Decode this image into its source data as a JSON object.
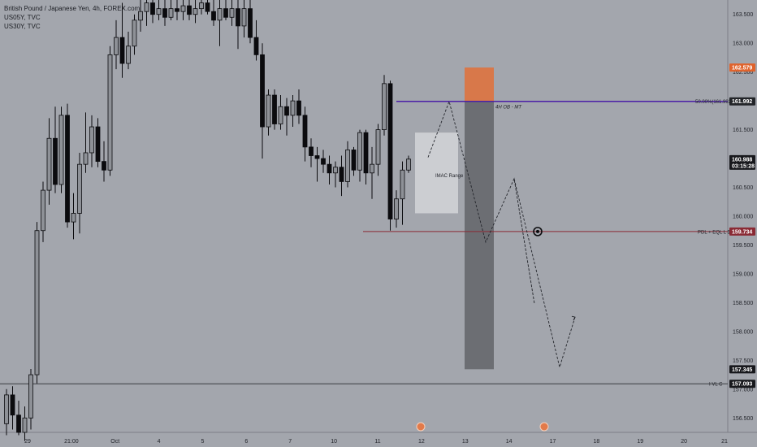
{
  "legend": {
    "symbol_line": "British Pound / Japanese Yen, 4h, FOREX.com",
    "overlay_1": "US05Y, TVC",
    "overlay_2": "US30Y, TVC"
  },
  "colors": {
    "background": "#a3a6ad",
    "bull_candle": "#8e9197",
    "bear_candle": "#0b0b0e",
    "supply_zone": "#d8784a",
    "trade_bar": "#6c6e73",
    "imac_box": "#cfd0d4",
    "fib_line": "#4b1fa6",
    "pdl_line": "#8a2a34",
    "price_tag_orange": "#e0632c",
    "price_tag_purple": "#222428",
    "price_tag_red": "#8a2a34",
    "price_tag_dark": "#17181c"
  },
  "chart_data": {
    "type": "candlestick",
    "symbol": "British Pound / Japanese Yen, 4h, FOREX.com",
    "ylim": [
      156.25,
      163.75
    ],
    "y_ticks": [
      "163.500",
      "163.000",
      "162.500",
      "162.000",
      "161.500",
      "161.000",
      "160.500",
      "160.000",
      "159.500",
      "159.000",
      "158.500",
      "158.000",
      "157.500",
      "157.000",
      "156.500"
    ],
    "x_ticks": [
      "29",
      "21:00",
      "Oct",
      "4",
      "5",
      "6",
      "7",
      "10",
      "11",
      "12",
      "13",
      "14",
      "17",
      "18",
      "19",
      "20",
      "21"
    ],
    "price_tags": [
      {
        "label": "162.579",
        "value": 162.579,
        "style": "orange"
      },
      {
        "label": "161.992",
        "value": 161.992,
        "style": "purple"
      },
      {
        "label": "160.988",
        "value": 160.988,
        "style": "dark",
        "sub": "03:15:28"
      },
      {
        "label": "159.734",
        "value": 159.734,
        "style": "red"
      },
      {
        "label": "157.345",
        "value": 157.345,
        "style": "dark"
      },
      {
        "label": "157.093",
        "value": 157.093,
        "style": "dark"
      }
    ],
    "levels": [
      {
        "name": "fib-50",
        "value": 161.992,
        "label": "50.00%(161.992)",
        "side_label": "4H OB - MT"
      },
      {
        "name": "pdl-eql",
        "value": 159.734,
        "label": "PDL + EQL L $"
      },
      {
        "name": "ivl-c",
        "value": 157.093,
        "label": "I VL C"
      }
    ],
    "zones": {
      "supply": {
        "top": 162.579,
        "bottom": 161.992
      },
      "trade": {
        "top": 161.992,
        "bottom": 157.345
      },
      "imac": {
        "top": 161.45,
        "bottom": 160.05,
        "label": "IMAC Range"
      }
    },
    "projection_path": [
      161.02,
      161.99,
      161.45,
      159.55,
      160.65,
      158.48,
      160.65,
      157.38,
      158.25
    ],
    "candles": [
      {
        "o": 156.4,
        "h": 157.0,
        "l": 156.2,
        "c": 156.9
      },
      {
        "o": 156.9,
        "h": 157.05,
        "l": 156.3,
        "c": 156.55
      },
      {
        "o": 156.55,
        "h": 156.8,
        "l": 156.2,
        "c": 156.25
      },
      {
        "o": 156.25,
        "h": 156.7,
        "l": 156.1,
        "c": 156.5
      },
      {
        "o": 156.5,
        "h": 157.35,
        "l": 156.3,
        "c": 157.25
      },
      {
        "o": 157.25,
        "h": 159.9,
        "l": 157.1,
        "c": 159.75
      },
      {
        "o": 159.75,
        "h": 160.6,
        "l": 159.55,
        "c": 160.45
      },
      {
        "o": 160.45,
        "h": 161.7,
        "l": 160.2,
        "c": 161.35
      },
      {
        "o": 161.35,
        "h": 161.9,
        "l": 160.4,
        "c": 160.55
      },
      {
        "o": 160.55,
        "h": 161.9,
        "l": 160.4,
        "c": 161.75
      },
      {
        "o": 161.75,
        "h": 161.95,
        "l": 159.8,
        "c": 159.9
      },
      {
        "o": 159.9,
        "h": 160.4,
        "l": 159.6,
        "c": 160.05
      },
      {
        "o": 160.05,
        "h": 161.1,
        "l": 159.7,
        "c": 160.9
      },
      {
        "o": 160.9,
        "h": 161.8,
        "l": 160.75,
        "c": 161.1
      },
      {
        "o": 161.1,
        "h": 161.75,
        "l": 160.85,
        "c": 161.55
      },
      {
        "o": 161.55,
        "h": 161.7,
        "l": 160.85,
        "c": 160.95
      },
      {
        "o": 160.95,
        "h": 161.3,
        "l": 160.6,
        "c": 160.8
      },
      {
        "o": 160.8,
        "h": 162.95,
        "l": 160.7,
        "c": 162.8
      },
      {
        "o": 162.8,
        "h": 163.4,
        "l": 162.55,
        "c": 163.1
      },
      {
        "o": 163.1,
        "h": 163.7,
        "l": 162.4,
        "c": 162.65
      },
      {
        "o": 162.65,
        "h": 163.2,
        "l": 162.55,
        "c": 162.95
      },
      {
        "o": 162.95,
        "h": 163.5,
        "l": 162.8,
        "c": 163.4
      },
      {
        "o": 163.4,
        "h": 163.75,
        "l": 163.2,
        "c": 163.55
      },
      {
        "o": 163.55,
        "h": 163.8,
        "l": 163.3,
        "c": 163.7
      },
      {
        "o": 163.7,
        "h": 163.75,
        "l": 163.35,
        "c": 163.5
      },
      {
        "o": 163.5,
        "h": 163.75,
        "l": 163.4,
        "c": 163.6
      },
      {
        "o": 163.6,
        "h": 163.75,
        "l": 163.3,
        "c": 163.45
      },
      {
        "o": 163.45,
        "h": 163.75,
        "l": 163.4,
        "c": 163.6
      },
      {
        "o": 163.6,
        "h": 163.75,
        "l": 163.4,
        "c": 163.55
      },
      {
        "o": 163.55,
        "h": 163.75,
        "l": 163.4,
        "c": 163.65
      },
      {
        "o": 163.65,
        "h": 163.75,
        "l": 163.4,
        "c": 163.5
      },
      {
        "o": 163.5,
        "h": 163.75,
        "l": 163.35,
        "c": 163.6
      },
      {
        "o": 163.6,
        "h": 163.75,
        "l": 163.5,
        "c": 163.7
      },
      {
        "o": 163.7,
        "h": 163.75,
        "l": 163.5,
        "c": 163.55
      },
      {
        "o": 163.55,
        "h": 163.75,
        "l": 163.3,
        "c": 163.4
      },
      {
        "o": 163.4,
        "h": 163.75,
        "l": 162.95,
        "c": 163.6
      },
      {
        "o": 163.6,
        "h": 163.75,
        "l": 163.4,
        "c": 163.45
      },
      {
        "o": 163.45,
        "h": 163.75,
        "l": 163.3,
        "c": 163.6
      },
      {
        "o": 163.6,
        "h": 163.75,
        "l": 162.9,
        "c": 163.3
      },
      {
        "o": 163.3,
        "h": 163.75,
        "l": 163.1,
        "c": 163.6
      },
      {
        "o": 163.6,
        "h": 163.75,
        "l": 163.0,
        "c": 163.1
      },
      {
        "o": 163.1,
        "h": 163.4,
        "l": 162.7,
        "c": 162.8
      },
      {
        "o": 162.8,
        "h": 163.0,
        "l": 161.0,
        "c": 161.55
      },
      {
        "o": 161.55,
        "h": 162.2,
        "l": 161.4,
        "c": 162.1
      },
      {
        "o": 162.1,
        "h": 162.2,
        "l": 161.5,
        "c": 161.6
      },
      {
        "o": 161.6,
        "h": 162.1,
        "l": 161.5,
        "c": 161.9
      },
      {
        "o": 161.9,
        "h": 162.05,
        "l": 161.4,
        "c": 161.75
      },
      {
        "o": 161.75,
        "h": 162.1,
        "l": 161.55,
        "c": 162.0
      },
      {
        "o": 162.0,
        "h": 162.2,
        "l": 161.6,
        "c": 161.75
      },
      {
        "o": 161.75,
        "h": 161.9,
        "l": 160.95,
        "c": 161.2
      },
      {
        "o": 161.2,
        "h": 161.35,
        "l": 160.85,
        "c": 161.05
      },
      {
        "o": 161.05,
        "h": 161.2,
        "l": 160.6,
        "c": 161.0
      },
      {
        "o": 161.0,
        "h": 161.15,
        "l": 160.75,
        "c": 160.9
      },
      {
        "o": 160.9,
        "h": 161.05,
        "l": 160.55,
        "c": 160.75
      },
      {
        "o": 160.75,
        "h": 160.95,
        "l": 160.5,
        "c": 160.85
      },
      {
        "o": 160.85,
        "h": 161.05,
        "l": 160.35,
        "c": 160.6
      },
      {
        "o": 160.6,
        "h": 161.3,
        "l": 160.5,
        "c": 161.15
      },
      {
        "o": 161.15,
        "h": 161.2,
        "l": 160.7,
        "c": 160.8
      },
      {
        "o": 160.8,
        "h": 161.5,
        "l": 160.6,
        "c": 161.45
      },
      {
        "o": 161.45,
        "h": 161.5,
        "l": 160.55,
        "c": 160.75
      },
      {
        "o": 160.75,
        "h": 161.2,
        "l": 160.3,
        "c": 160.9
      },
      {
        "o": 160.9,
        "h": 161.6,
        "l": 160.7,
        "c": 161.5
      },
      {
        "o": 161.5,
        "h": 162.45,
        "l": 161.4,
        "c": 162.3
      },
      {
        "o": 162.3,
        "h": 162.35,
        "l": 159.75,
        "c": 159.95
      },
      {
        "o": 159.95,
        "h": 160.45,
        "l": 159.8,
        "c": 160.3
      },
      {
        "o": 160.3,
        "h": 160.95,
        "l": 159.85,
        "c": 160.8
      },
      {
        "o": 160.8,
        "h": 161.05,
        "l": 160.75,
        "c": 160.99
      }
    ]
  }
}
